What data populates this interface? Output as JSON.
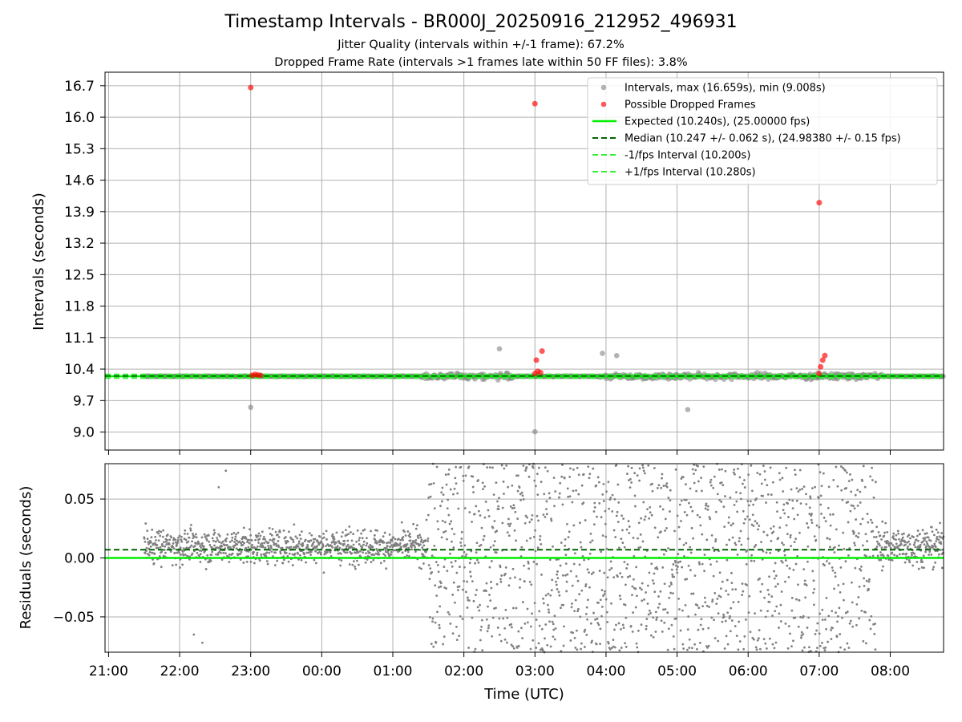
{
  "chart_data": [
    {
      "type": "scatter",
      "title": "Timestamp Intervals - BR000J_20250916_212952_496931",
      "subtitle_lines": [
        "Jitter Quality (intervals within +/-1 frame): 67.2%",
        "Dropped Frame Rate (intervals >1 frames late within 50 FF files): 3.8%"
      ],
      "xlabel": "",
      "ylabel": "Intervals (seconds)",
      "x_axis_unit": "hours since 21:00 UTC",
      "xlim": [
        -0.05,
        11.75
      ],
      "ylim": [
        8.6,
        17.0
      ],
      "y_ticks": [
        "9.0",
        "9.7",
        "10.4",
        "11.1",
        "11.8",
        "12.5",
        "13.2",
        "13.9",
        "14.6",
        "15.3",
        "16.0",
        "16.7"
      ],
      "x_tick_labels": [
        "21:00",
        "22:00",
        "23:00",
        "00:00",
        "01:00",
        "02:00",
        "03:00",
        "04:00",
        "05:00",
        "06:00",
        "07:00",
        "08:00"
      ],
      "grid": true,
      "legend_position": "top-right",
      "legend": [
        "Intervals, max (16.659s), min (9.008s)",
        "Possible Dropped Frames",
        "Expected (10.240s), (25.00000 fps)",
        "Median (10.247 +/- 0.062 s), (24.98380 +/- 0.15 fps)",
        "-1/fps Interval (10.200s)",
        "+1/fps Interval (10.280s)"
      ],
      "reference_lines": {
        "expected": 10.24,
        "median": 10.247,
        "minus_one_frame": 10.2,
        "plus_one_frame": 10.28
      },
      "series": [
        {
          "name": "Intervals, max (16.659s), min (9.008s)",
          "color": "#808080",
          "x_range": [
            0.5,
            11.75
          ],
          "noisy_segments": [
            [
              4.4,
              5.7
            ],
            [
              6.9,
              10.9
            ]
          ],
          "points": [
            {
              "x": 2.0,
              "y": 9.55
            },
            {
              "x": 6.0,
              "y": 9.008
            },
            {
              "x": 8.15,
              "y": 9.5
            },
            {
              "x": 6.95,
              "y": 10.75
            },
            {
              "x": 7.15,
              "y": 10.7
            },
            {
              "x": 5.5,
              "y": 10.85
            },
            {
              "x": 3.0,
              "y": 10.25
            }
          ]
        },
        {
          "name": "Possible Dropped Frames",
          "color": "#ff0000",
          "points": [
            {
              "x": 2.0,
              "y": 16.659
            },
            {
              "x": 6.0,
              "y": 16.3
            },
            {
              "x": 10.0,
              "y": 14.1
            },
            {
              "x": 2.02,
              "y": 10.26
            },
            {
              "x": 2.06,
              "y": 10.28
            },
            {
              "x": 2.1,
              "y": 10.27
            },
            {
              "x": 2.14,
              "y": 10.26
            },
            {
              "x": 6.0,
              "y": 10.3
            },
            {
              "x": 6.04,
              "y": 10.35
            },
            {
              "x": 6.08,
              "y": 10.32
            },
            {
              "x": 6.1,
              "y": 10.8
            },
            {
              "x": 6.02,
              "y": 10.6
            },
            {
              "x": 10.0,
              "y": 10.3
            },
            {
              "x": 10.05,
              "y": 10.6
            },
            {
              "x": 10.08,
              "y": 10.7
            },
            {
              "x": 10.02,
              "y": 10.45
            }
          ]
        }
      ]
    },
    {
      "type": "scatter",
      "title": "",
      "xlabel": "Time (UTC)",
      "ylabel": "Residuals (seconds)",
      "x_axis_unit": "hours since 21:00 UTC",
      "xlim": [
        -0.05,
        11.75
      ],
      "ylim": [
        -0.08,
        0.08
      ],
      "y_ticks": [
        "−0.05",
        "0.00",
        "0.05"
      ],
      "y_tick_values": [
        -0.05,
        0.0,
        0.05
      ],
      "x_tick_labels": [
        "21:00",
        "22:00",
        "23:00",
        "00:00",
        "01:00",
        "02:00",
        "03:00",
        "04:00",
        "05:00",
        "06:00",
        "07:00",
        "08:00"
      ],
      "grid": true,
      "reference_lines": {
        "zero": 0.0,
        "median_offset": 0.007
      },
      "series": [
        {
          "name": "",
          "color": "#808080",
          "x_range": [
            0.5,
            11.75
          ],
          "segments": [
            {
              "x": [
                0.5,
                4.5
              ],
              "center": 0.01,
              "spread": 0.03
            },
            {
              "x": [
                4.5,
                10.8
              ],
              "center": 0.0,
              "spread": 0.08
            },
            {
              "x": [
                10.8,
                11.75
              ],
              "center": 0.01,
              "spread": 0.035
            }
          ],
          "outliers": [
            {
              "x": 1.2,
              "y": -0.065
            },
            {
              "x": 1.32,
              "y": -0.072
            },
            {
              "x": 1.65,
              "y": 0.074
            },
            {
              "x": 1.55,
              "y": 0.06
            }
          ]
        }
      ]
    }
  ],
  "colors": {
    "intervals": "#808080",
    "dropped": "#ff0000",
    "expected": "#00ee00",
    "median": "#006400",
    "fps_bounds": "#33ee33",
    "grid": "#b0b0b0"
  }
}
